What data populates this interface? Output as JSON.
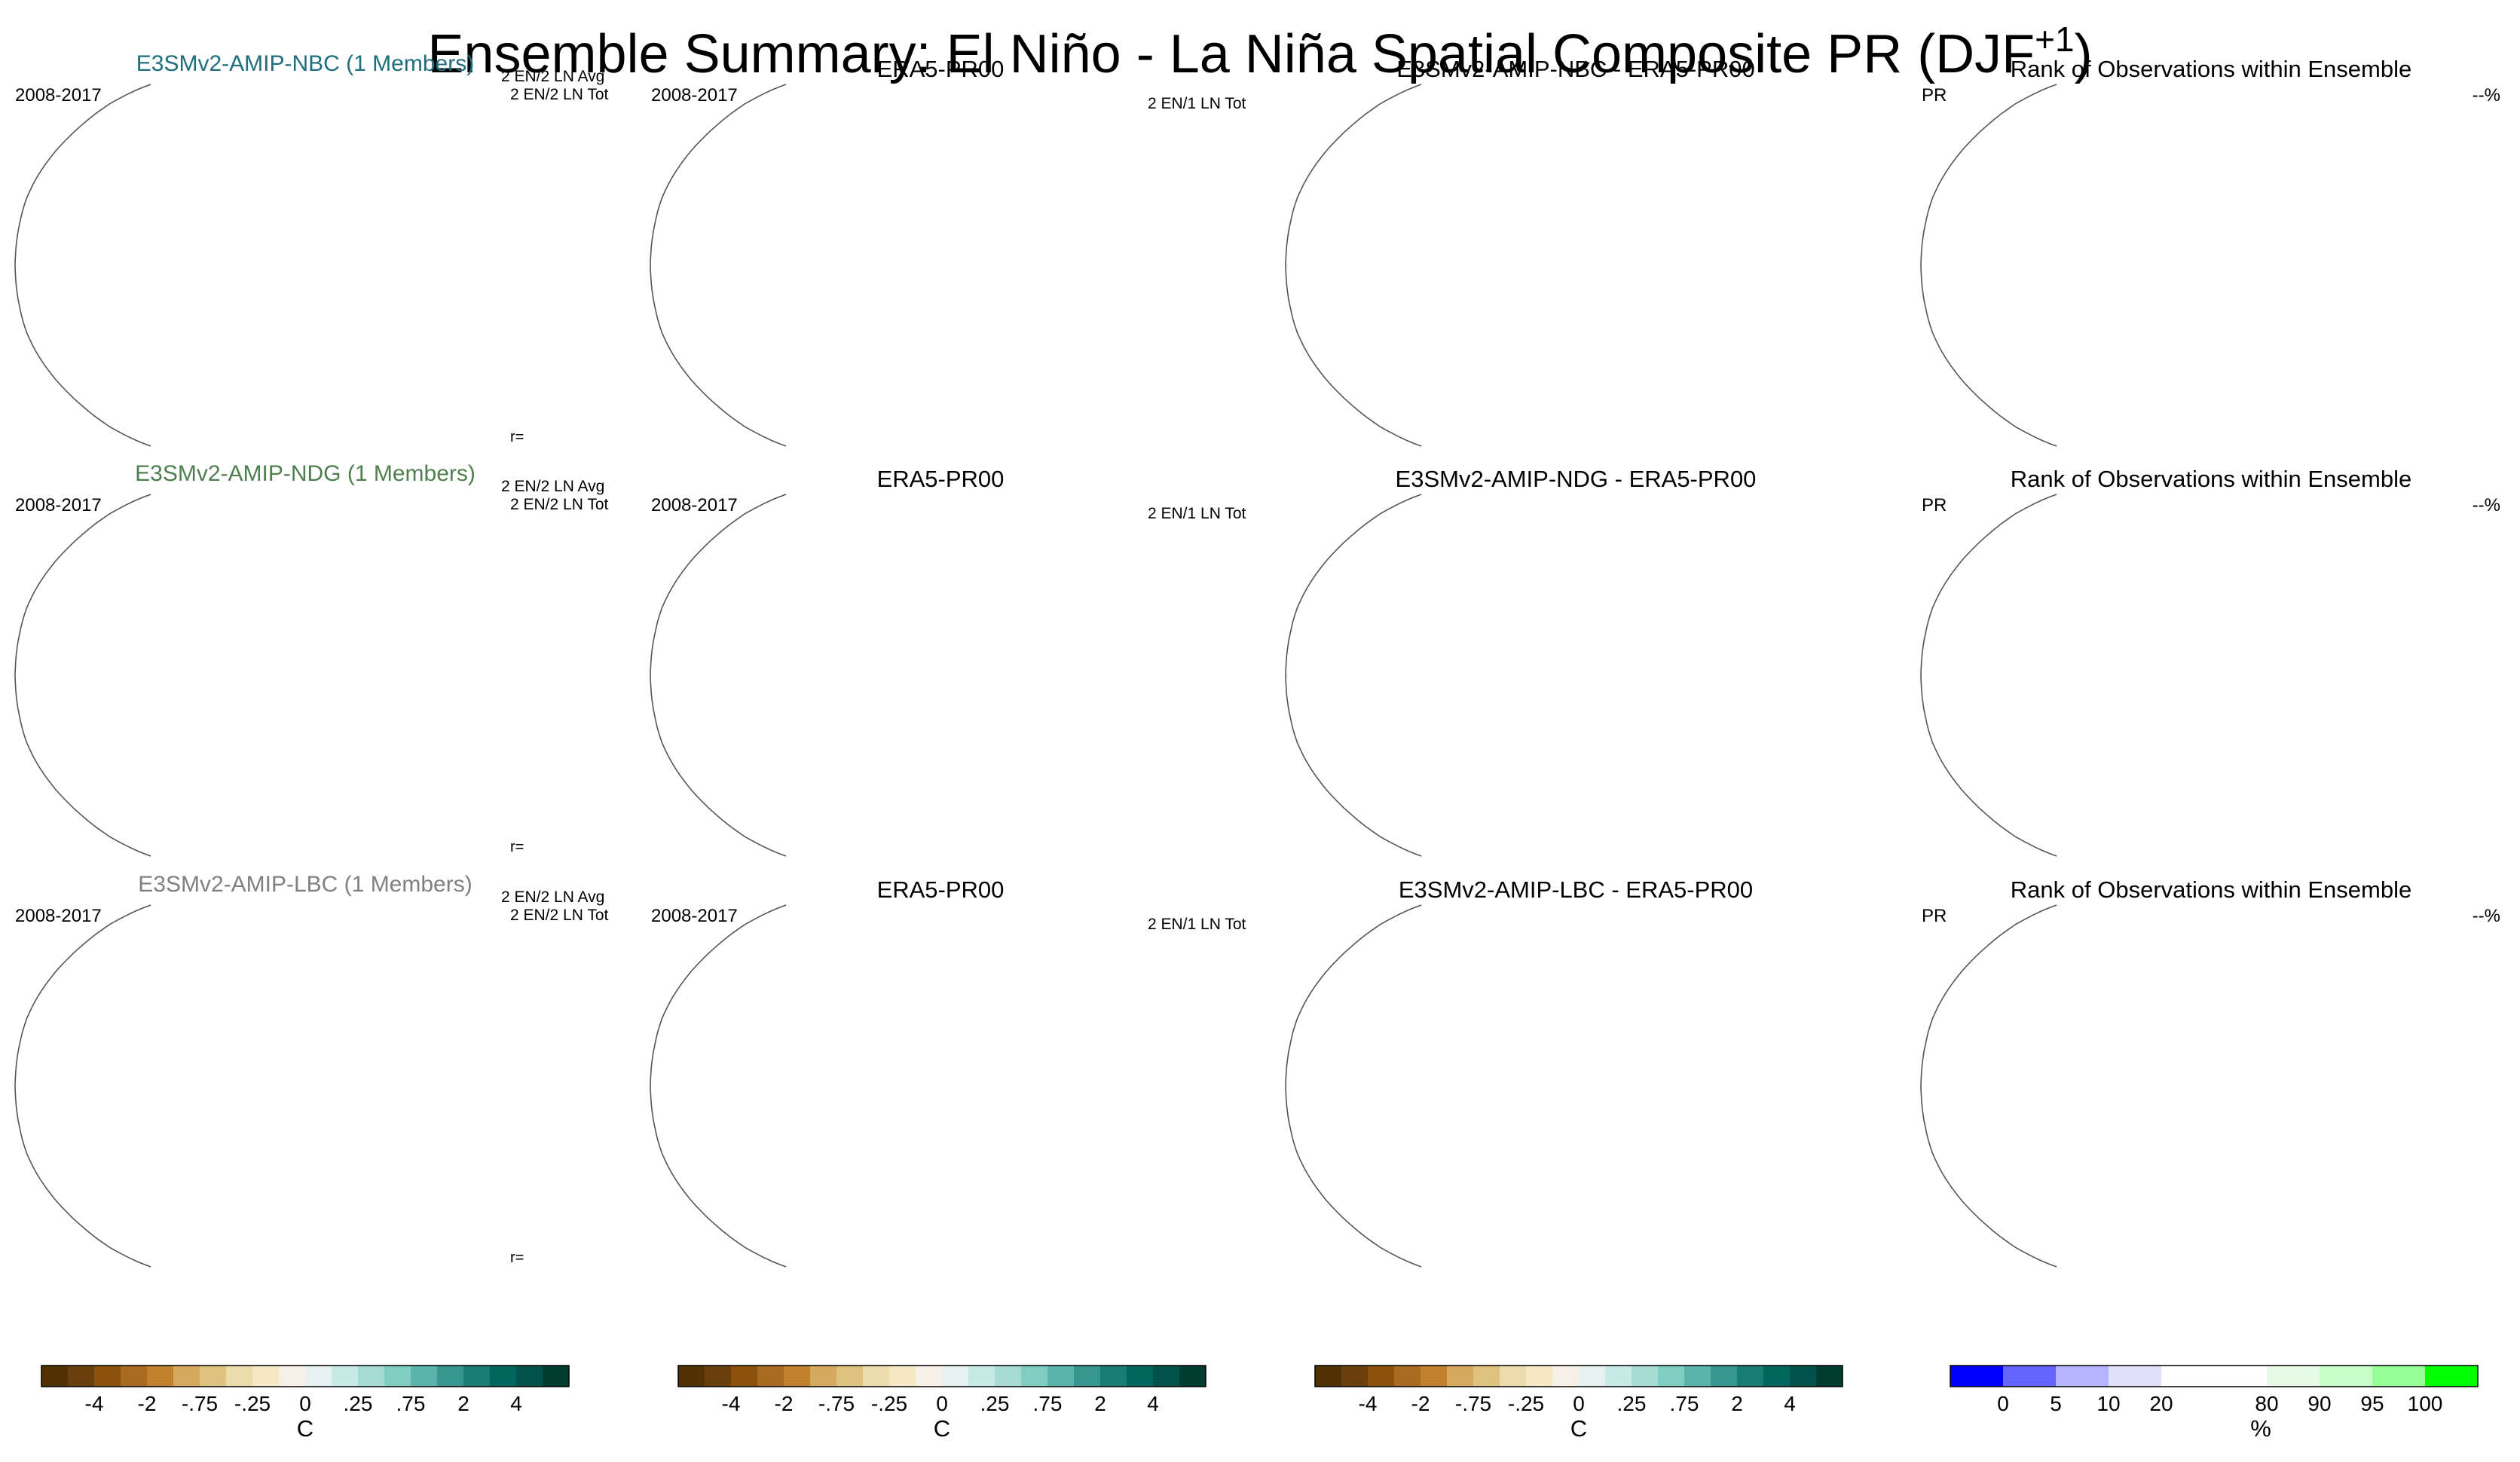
{
  "title_main": "Ensemble Summary: El Niño - La Niña Spatial Composite PR (DJF",
  "title_sup": "+1",
  "title_end": ")",
  "chart_data": {
    "type": "heatmap",
    "projection": "Robinson (Pacific-centered)",
    "rows": [
      {
        "model": {
          "title": "E3SMv2-AMIP-NBC (1 Members)",
          "title_color": "#1f6e7e",
          "period": "2008-2017",
          "info1": "2 EN/2 LN Avg",
          "info2": "2 EN/2 LN Tot",
          "corr": "r=",
          "seed": 11
        },
        "obs": {
          "title": "ERA5-PR00",
          "period": "2008-2017",
          "info": "2 EN/1 LN Tot"
        },
        "diff": {
          "title": "E3SMv2-AMIP-NBC - ERA5-PR00"
        },
        "rank": {
          "title": "Rank of Observations within Ensemble",
          "left": "PR",
          "right": "--%"
        }
      },
      {
        "model": {
          "title": "E3SMv2-AMIP-NDG (1 Members)",
          "title_color": "#4f7f4f",
          "period": "2008-2017",
          "info1": "2 EN/2 LN Avg",
          "info2": "2 EN/2 LN Tot",
          "corr": "r=",
          "seed": 23
        },
        "obs": {
          "title": "ERA5-PR00",
          "period": "2008-2017",
          "info": "2 EN/1 LN Tot"
        },
        "diff": {
          "title": "E3SMv2-AMIP-NDG - ERA5-PR00"
        },
        "rank": {
          "title": "Rank of Observations within Ensemble",
          "left": "PR",
          "right": "--%"
        }
      },
      {
        "model": {
          "title": "E3SMv2-AMIP-LBC (1 Members)",
          "title_color": "#808080",
          "period": "2008-2017",
          "info1": "2 EN/2 LN Avg",
          "info2": "2 EN/2 LN Tot",
          "corr": "r=",
          "seed": 37
        },
        "obs": {
          "title": "ERA5-PR00",
          "period": "2008-2017",
          "info": "2 EN/1 LN Tot"
        },
        "diff": {
          "title": "E3SMv2-AMIP-LBC - ERA5-PR00"
        },
        "rank": {
          "title": "Rank of Observations within Ensemble",
          "left": "PR",
          "right": "--%"
        }
      }
    ],
    "colorbars": [
      {
        "unit": "C",
        "colors": [
          "#543005",
          "#6b3f0b",
          "#8c510a",
          "#a86b1f",
          "#bf812d",
          "#d5a95e",
          "#dfc27d",
          "#ecdcab",
          "#f6e8c3",
          "#f5f1e6",
          "#e6f2f0",
          "#c7eae5",
          "#a5dbd3",
          "#80cdc1",
          "#5ab4ac",
          "#35978f",
          "#1a7d74",
          "#01665e",
          "#01524a",
          "#003c30"
        ],
        "labels": [
          {
            "t": "-4",
            "i": 2
          },
          {
            "t": "-2",
            "i": 4
          },
          {
            "t": "-.75",
            "i": 6
          },
          {
            "t": "-.25",
            "i": 8
          },
          {
            "t": "0",
            "i": 10
          },
          {
            "t": ".25",
            "i": 12
          },
          {
            "t": ".75",
            "i": 14
          },
          {
            "t": "2",
            "i": 16
          },
          {
            "t": "4",
            "i": 18
          }
        ]
      },
      {
        "unit": "C",
        "colors": [
          "#543005",
          "#6b3f0b",
          "#8c510a",
          "#a86b1f",
          "#bf812d",
          "#d5a95e",
          "#dfc27d",
          "#ecdcab",
          "#f6e8c3",
          "#f5f1e6",
          "#e6f2f0",
          "#c7eae5",
          "#a5dbd3",
          "#80cdc1",
          "#5ab4ac",
          "#35978f",
          "#1a7d74",
          "#01665e",
          "#01524a",
          "#003c30"
        ],
        "labels": [
          {
            "t": "-4",
            "i": 2
          },
          {
            "t": "-2",
            "i": 4
          },
          {
            "t": "-.75",
            "i": 6
          },
          {
            "t": "-.25",
            "i": 8
          },
          {
            "t": "0",
            "i": 10
          },
          {
            "t": ".25",
            "i": 12
          },
          {
            "t": ".75",
            "i": 14
          },
          {
            "t": "2",
            "i": 16
          },
          {
            "t": "4",
            "i": 18
          }
        ]
      },
      {
        "unit": "C",
        "colors": [
          "#543005",
          "#6b3f0b",
          "#8c510a",
          "#a86b1f",
          "#bf812d",
          "#d5a95e",
          "#dfc27d",
          "#ecdcab",
          "#f6e8c3",
          "#f5f1e6",
          "#e6f2f0",
          "#c7eae5",
          "#a5dbd3",
          "#80cdc1",
          "#5ab4ac",
          "#35978f",
          "#1a7d74",
          "#01665e",
          "#01524a",
          "#003c30"
        ],
        "labels": [
          {
            "t": "-4",
            "i": 2
          },
          {
            "t": "-2",
            "i": 4
          },
          {
            "t": "-.75",
            "i": 6
          },
          {
            "t": "-.25",
            "i": 8
          },
          {
            "t": "0",
            "i": 10
          },
          {
            "t": ".25",
            "i": 12
          },
          {
            "t": ".75",
            "i": 14
          },
          {
            "t": "2",
            "i": 16
          },
          {
            "t": "4",
            "i": 18
          }
        ]
      },
      {
        "unit": "%",
        "colors": [
          "#0000ff",
          "#6464ff",
          "#b4b4ff",
          "#e0e0fa",
          "#ffffff",
          "#ffffff",
          "#e6fae6",
          "#c8ffc8",
          "#96ff96",
          "#00ff00"
        ],
        "labels": [
          {
            "t": "0",
            "i": 1
          },
          {
            "t": "5",
            "i": 2
          },
          {
            "t": "10",
            "i": 3
          },
          {
            "t": "20",
            "i": 4
          },
          {
            "t": "80",
            "i": 6
          },
          {
            "t": "90",
            "i": 7
          },
          {
            "t": "95",
            "i": 8
          },
          {
            "t": "100",
            "i": 9
          }
        ]
      }
    ]
  }
}
